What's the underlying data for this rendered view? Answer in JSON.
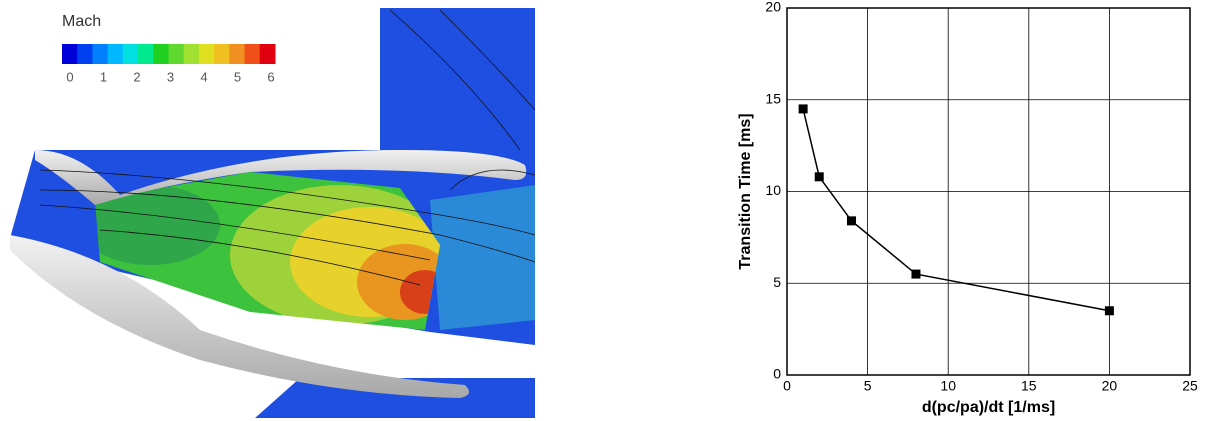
{
  "contour_legend": {
    "title": "Mach",
    "ticks": [
      0,
      1,
      2,
      3,
      4,
      5,
      6
    ]
  },
  "chart_data": {
    "type": "line",
    "x_label": "d(pc/pa)/dt [1/ms]",
    "y_label": "Transition Time [ms]",
    "x": [
      1,
      2,
      4,
      8,
      20
    ],
    "series": [
      {
        "color": "#000000",
        "values": [
          14.5,
          10.8,
          8.4,
          5.5,
          3.5
        ]
      }
    ],
    "xlim": [
      0,
      25
    ],
    "xticks": [
      0,
      5,
      10,
      15,
      20,
      25
    ],
    "ylim": [
      0,
      20
    ],
    "yticks": [
      0,
      5,
      10,
      15,
      20
    ],
    "grid": true,
    "marker": "square"
  }
}
